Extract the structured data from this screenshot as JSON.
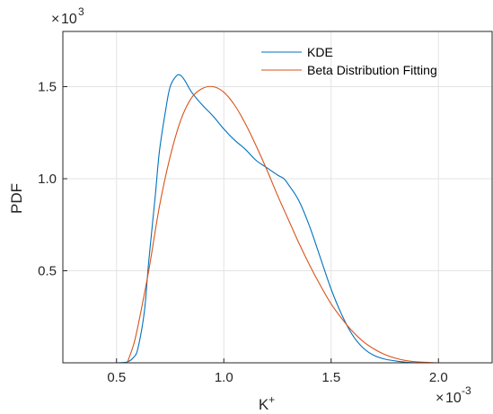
{
  "chart_data": {
    "type": "line",
    "title": "",
    "xlabel": "K",
    "xlabel_sup": "+",
    "ylabel": "PDF",
    "x_scale_base": "10",
    "x_scale_exp": "-3",
    "y_scale_base": "10",
    "y_scale_exp": "3",
    "xlim": [
      0.25,
      2.25
    ],
    "ylim": [
      0.0,
      1.8
    ],
    "xticks": [
      0.5,
      1.0,
      1.5,
      2.0
    ],
    "xtick_labels": [
      "0.5",
      "1.0",
      "1.5",
      "2.0"
    ],
    "yticks": [
      0.5,
      1.0,
      1.5
    ],
    "ytick_labels": [
      "0.5",
      "1.0",
      "1.5"
    ],
    "grid": true,
    "legend_position": "top-right",
    "series": [
      {
        "name": "KDE",
        "color": "#0072BD",
        "x": [
          0.5,
          0.55,
          0.58,
          0.6,
          0.63,
          0.65,
          0.68,
          0.7,
          0.73,
          0.75,
          0.78,
          0.8,
          0.82,
          0.85,
          0.9,
          0.95,
          1.0,
          1.05,
          1.1,
          1.15,
          1.2,
          1.25,
          1.28,
          1.3,
          1.35,
          1.4,
          1.45,
          1.5,
          1.55,
          1.6,
          1.65,
          1.7,
          1.75,
          1.8,
          1.85,
          1.9
        ],
        "y": [
          0.0,
          0.005,
          0.03,
          0.08,
          0.28,
          0.55,
          0.9,
          1.15,
          1.38,
          1.5,
          1.56,
          1.56,
          1.53,
          1.47,
          1.4,
          1.34,
          1.27,
          1.21,
          1.16,
          1.1,
          1.06,
          1.02,
          1.0,
          0.97,
          0.88,
          0.74,
          0.57,
          0.4,
          0.26,
          0.15,
          0.08,
          0.04,
          0.02,
          0.01,
          0.003,
          0.0
        ]
      },
      {
        "name": "Beta Distribution Fitting",
        "color": "#D95319",
        "x": [
          0.55,
          0.58,
          0.6,
          0.65,
          0.7,
          0.75,
          0.8,
          0.85,
          0.9,
          0.95,
          1.0,
          1.05,
          1.1,
          1.15,
          1.2,
          1.25,
          1.3,
          1.35,
          1.4,
          1.45,
          1.5,
          1.55,
          1.6,
          1.65,
          1.7,
          1.75,
          1.8,
          1.85,
          1.9,
          1.95,
          2.0
        ],
        "y": [
          0.0,
          0.1,
          0.2,
          0.5,
          0.85,
          1.12,
          1.32,
          1.44,
          1.49,
          1.5,
          1.47,
          1.4,
          1.3,
          1.18,
          1.05,
          0.91,
          0.78,
          0.65,
          0.53,
          0.42,
          0.32,
          0.24,
          0.17,
          0.115,
          0.075,
          0.045,
          0.025,
          0.012,
          0.005,
          0.002,
          0.0
        ]
      }
    ]
  }
}
